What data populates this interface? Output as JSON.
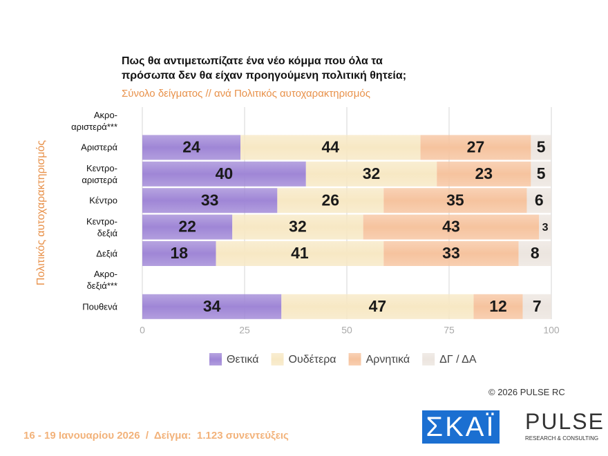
{
  "chart_data": {
    "type": "stacked-bar-horizontal",
    "title": "Πως θα αντιμετωπίζατε ένα νέο κόμμα που όλα τα\nπρόσωπα δεν θα είχαν προηγούμενη πολιτική θητεία;",
    "subtitle": "Σύνολο δείγματος // ανά Πολιτικός αυτοχαρακτηρισμός",
    "y_label": "Πολιτικός αυτοχαρακτηρισμός",
    "categories": [
      "Ακρο-\nαριστερά***",
      "Αριστερά",
      "Κεντρο-\nαριστερά",
      "Κέντρο",
      "Κεντρο-\nδεξιά",
      "Δεξιά",
      "Ακρο-\nδεξιά***",
      "Πουθενά"
    ],
    "series": [
      {
        "name": "Θετικά",
        "color": "#9f86d6",
        "values": [
          null,
          24,
          40,
          33,
          22,
          18,
          null,
          34
        ]
      },
      {
        "name": "Ουδέτερα",
        "color": "#f7e8c4",
        "values": [
          null,
          44,
          32,
          26,
          32,
          41,
          null,
          47
        ]
      },
      {
        "name": "Αρνητικά",
        "color": "#f6c39e",
        "values": [
          null,
          27,
          23,
          35,
          43,
          33,
          null,
          12
        ]
      },
      {
        "name": "ΔΓ / ΔΑ",
        "color": "#ece5df",
        "values": [
          null,
          5,
          5,
          6,
          3,
          8,
          null,
          7
        ]
      }
    ],
    "xlim": [
      0,
      100
    ],
    "xticks": [
      0,
      25,
      50,
      75,
      100
    ],
    "grid": true,
    "legend": "bottom",
    "copyright": "© 2026 PULSE RC",
    "footer": "16 - 19 Ιανουαρίου 2026  /  Δείγμα:  1.123 συνεντεύξεις",
    "logo_left": "ΣΚΑΪ",
    "logo_right": "PULSE",
    "logo_right_sub": "RESEARCH & CONSULTING"
  }
}
